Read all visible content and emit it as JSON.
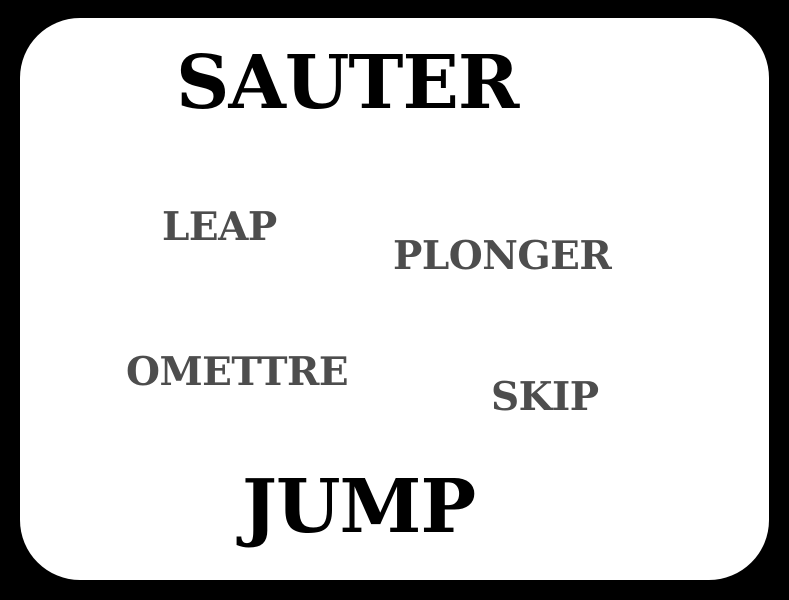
{
  "card": {
    "title": "SAUTER",
    "subtitle": "JUMP",
    "words": [
      "LEAP",
      "PLONGER",
      "OMETTRE",
      "SKIP"
    ]
  },
  "colors": {
    "frame": "#000000",
    "card_background": "#ffffff",
    "title_text": "#000000",
    "word_text": "#4d4d4d"
  }
}
